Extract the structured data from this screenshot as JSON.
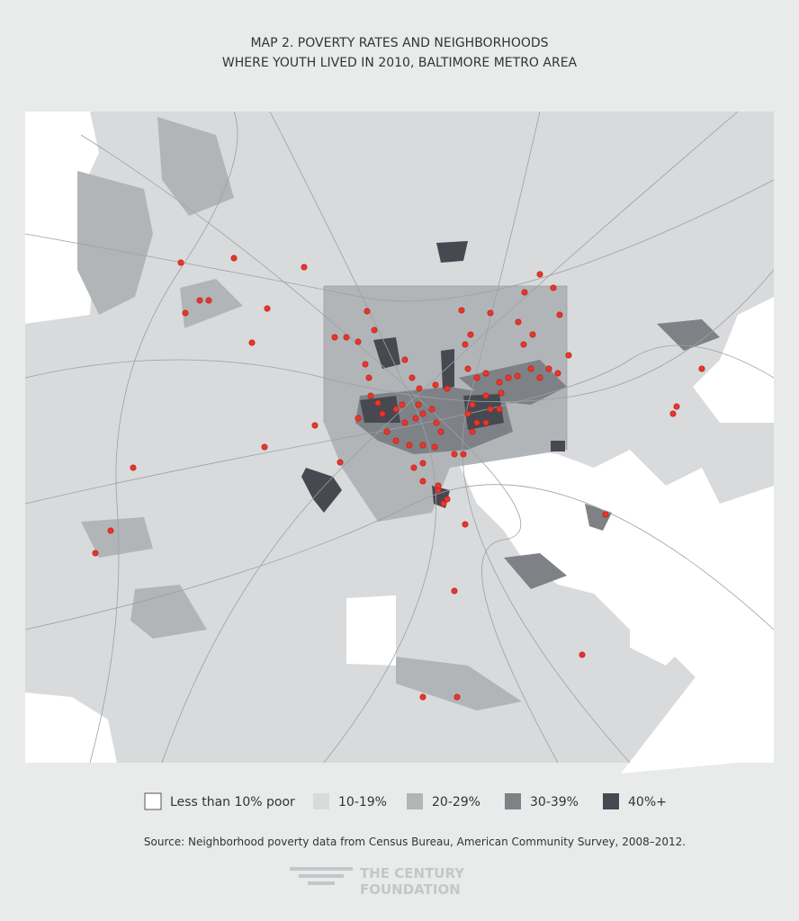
{
  "title": [
    "MAP 2. POVERTY RATES AND NEIGHBORHOODS",
    "WHERE YOUTH LIVED IN 2010, BALTIMORE METRO AREA"
  ],
  "legend": [
    {
      "label": "Less than 10% poor",
      "color": "#ffffff"
    },
    {
      "label": "10-19%",
      "color": "#d8dadc"
    },
    {
      "label": "20-29%",
      "color": "#b2b5b8"
    },
    {
      "label": "30-39%",
      "color": "#7e8186"
    },
    {
      "label": "40%+",
      "color": "#474951"
    }
  ],
  "source": "Source: Neighborhood poverty data from Census Bureau, American Community Survey, 2008–2012.",
  "logo": [
    "THE CENTURY",
    "FOUNDATION"
  ]
}
